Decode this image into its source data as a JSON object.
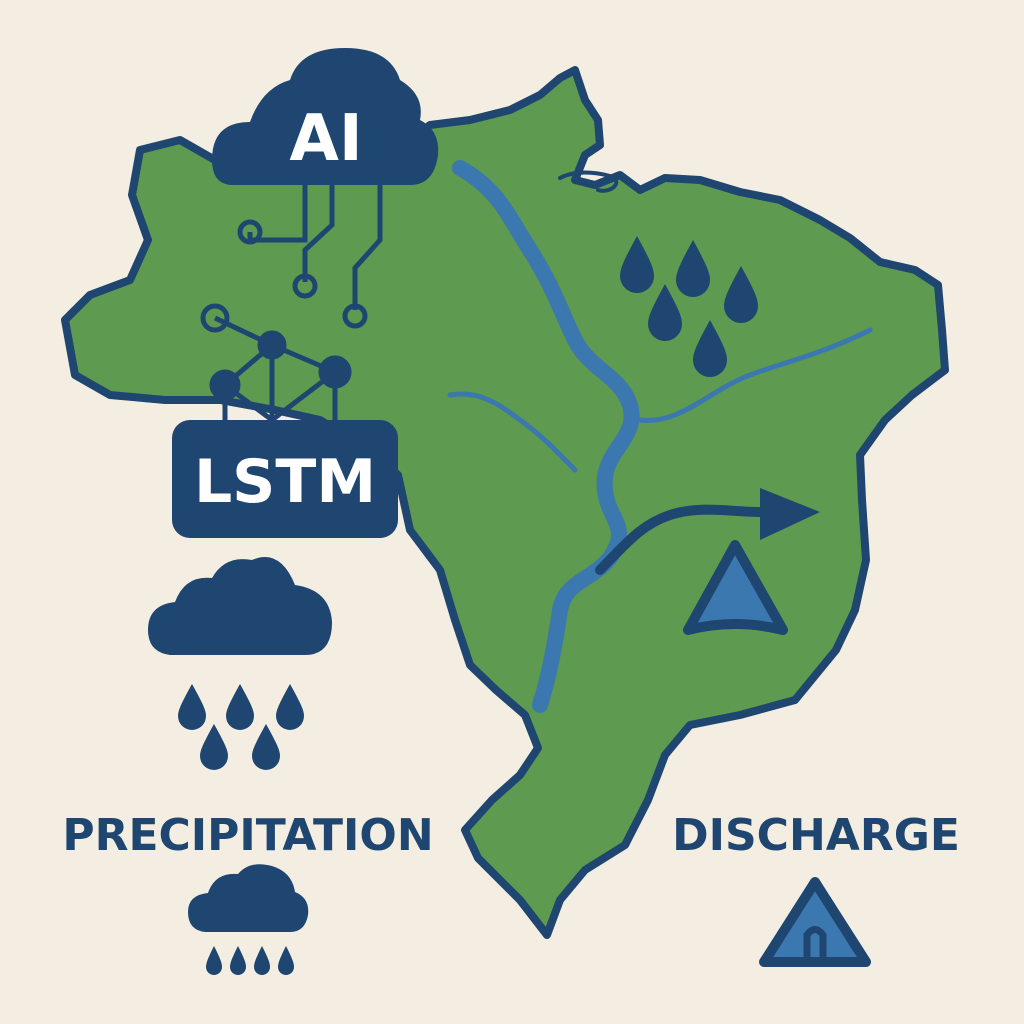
{
  "labels": {
    "ai": "AI",
    "model": "LSTM",
    "input": "PRECIPITATION",
    "output": "DISCHARGE"
  },
  "colors": {
    "background": "#f3ede2",
    "land": "#5e9a4f",
    "navy": "#1f4670",
    "river": "#3b78b0",
    "white": "#ffffff"
  },
  "icons": [
    "cloud-ai-icon",
    "circuit-icon",
    "network-icon",
    "rain-cloud-icon",
    "small-rain-cloud-icon",
    "raindrops-icon",
    "river-icon",
    "arrow-right-icon",
    "warning-triangle-icon",
    "discharge-triangle-icon",
    "brazil-map"
  ]
}
